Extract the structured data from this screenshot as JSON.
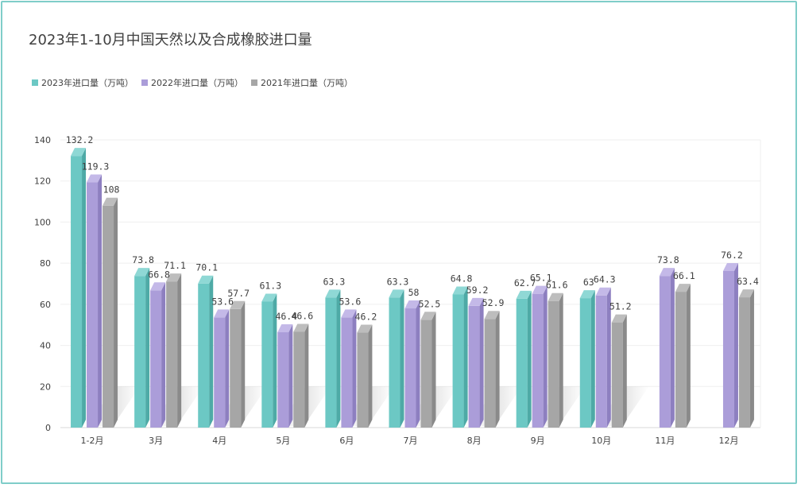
{
  "title": "2023年1-10月中国天然以及合成橡胶进口量",
  "colors": {
    "s2023": "#6cc8c4",
    "s2022": "#ab9dd9",
    "s2021": "#a6a6a6",
    "frame": "#7fcdc9"
  },
  "chart_data": {
    "type": "bar",
    "title": "2023年1-10月中国天然以及合成橡胶进口量",
    "categories": [
      "1-2月",
      "3月",
      "4月",
      "5月",
      "6月",
      "7月",
      "8月",
      "9月",
      "10月",
      "11月",
      "12月"
    ],
    "series": [
      {
        "name": "2023年进口量（万吨）",
        "values": [
          132.2,
          73.8,
          70.1,
          61.3,
          63.3,
          63.3,
          64.8,
          62.7,
          63,
          null,
          null
        ]
      },
      {
        "name": "2022年进口量（万吨）",
        "values": [
          119.3,
          66.8,
          53.6,
          46.4,
          53.6,
          58,
          59.2,
          65.1,
          64.3,
          73.8,
          76.2
        ]
      },
      {
        "name": "2021年进口量（万吨）",
        "values": [
          108,
          71.1,
          57.7,
          46.6,
          46.2,
          52.5,
          52.9,
          61.6,
          51.2,
          66.1,
          63.4
        ]
      }
    ],
    "yticks": [
      "0",
      "20",
      "40",
      "60",
      "80",
      "100",
      "120",
      "140"
    ],
    "ylim": [
      0,
      140
    ],
    "grid": true,
    "legend": "top-left",
    "data_labels": [
      [
        "132.2",
        "73.8",
        "70.1",
        "61.3",
        "63.3",
        "63.3",
        "64.8",
        "62.7",
        "63",
        "",
        ""
      ],
      [
        "119.3",
        "66.8",
        "53.6",
        "46.4",
        "53.6",
        "58",
        "59.2",
        "65.1",
        "64.3",
        "73.8",
        "76.2"
      ],
      [
        "108",
        "71.1",
        "57.7",
        "46.6",
        "46.2",
        "52.5",
        "52.9",
        "61.6",
        "51.2",
        "66.1",
        "63.4"
      ]
    ]
  }
}
